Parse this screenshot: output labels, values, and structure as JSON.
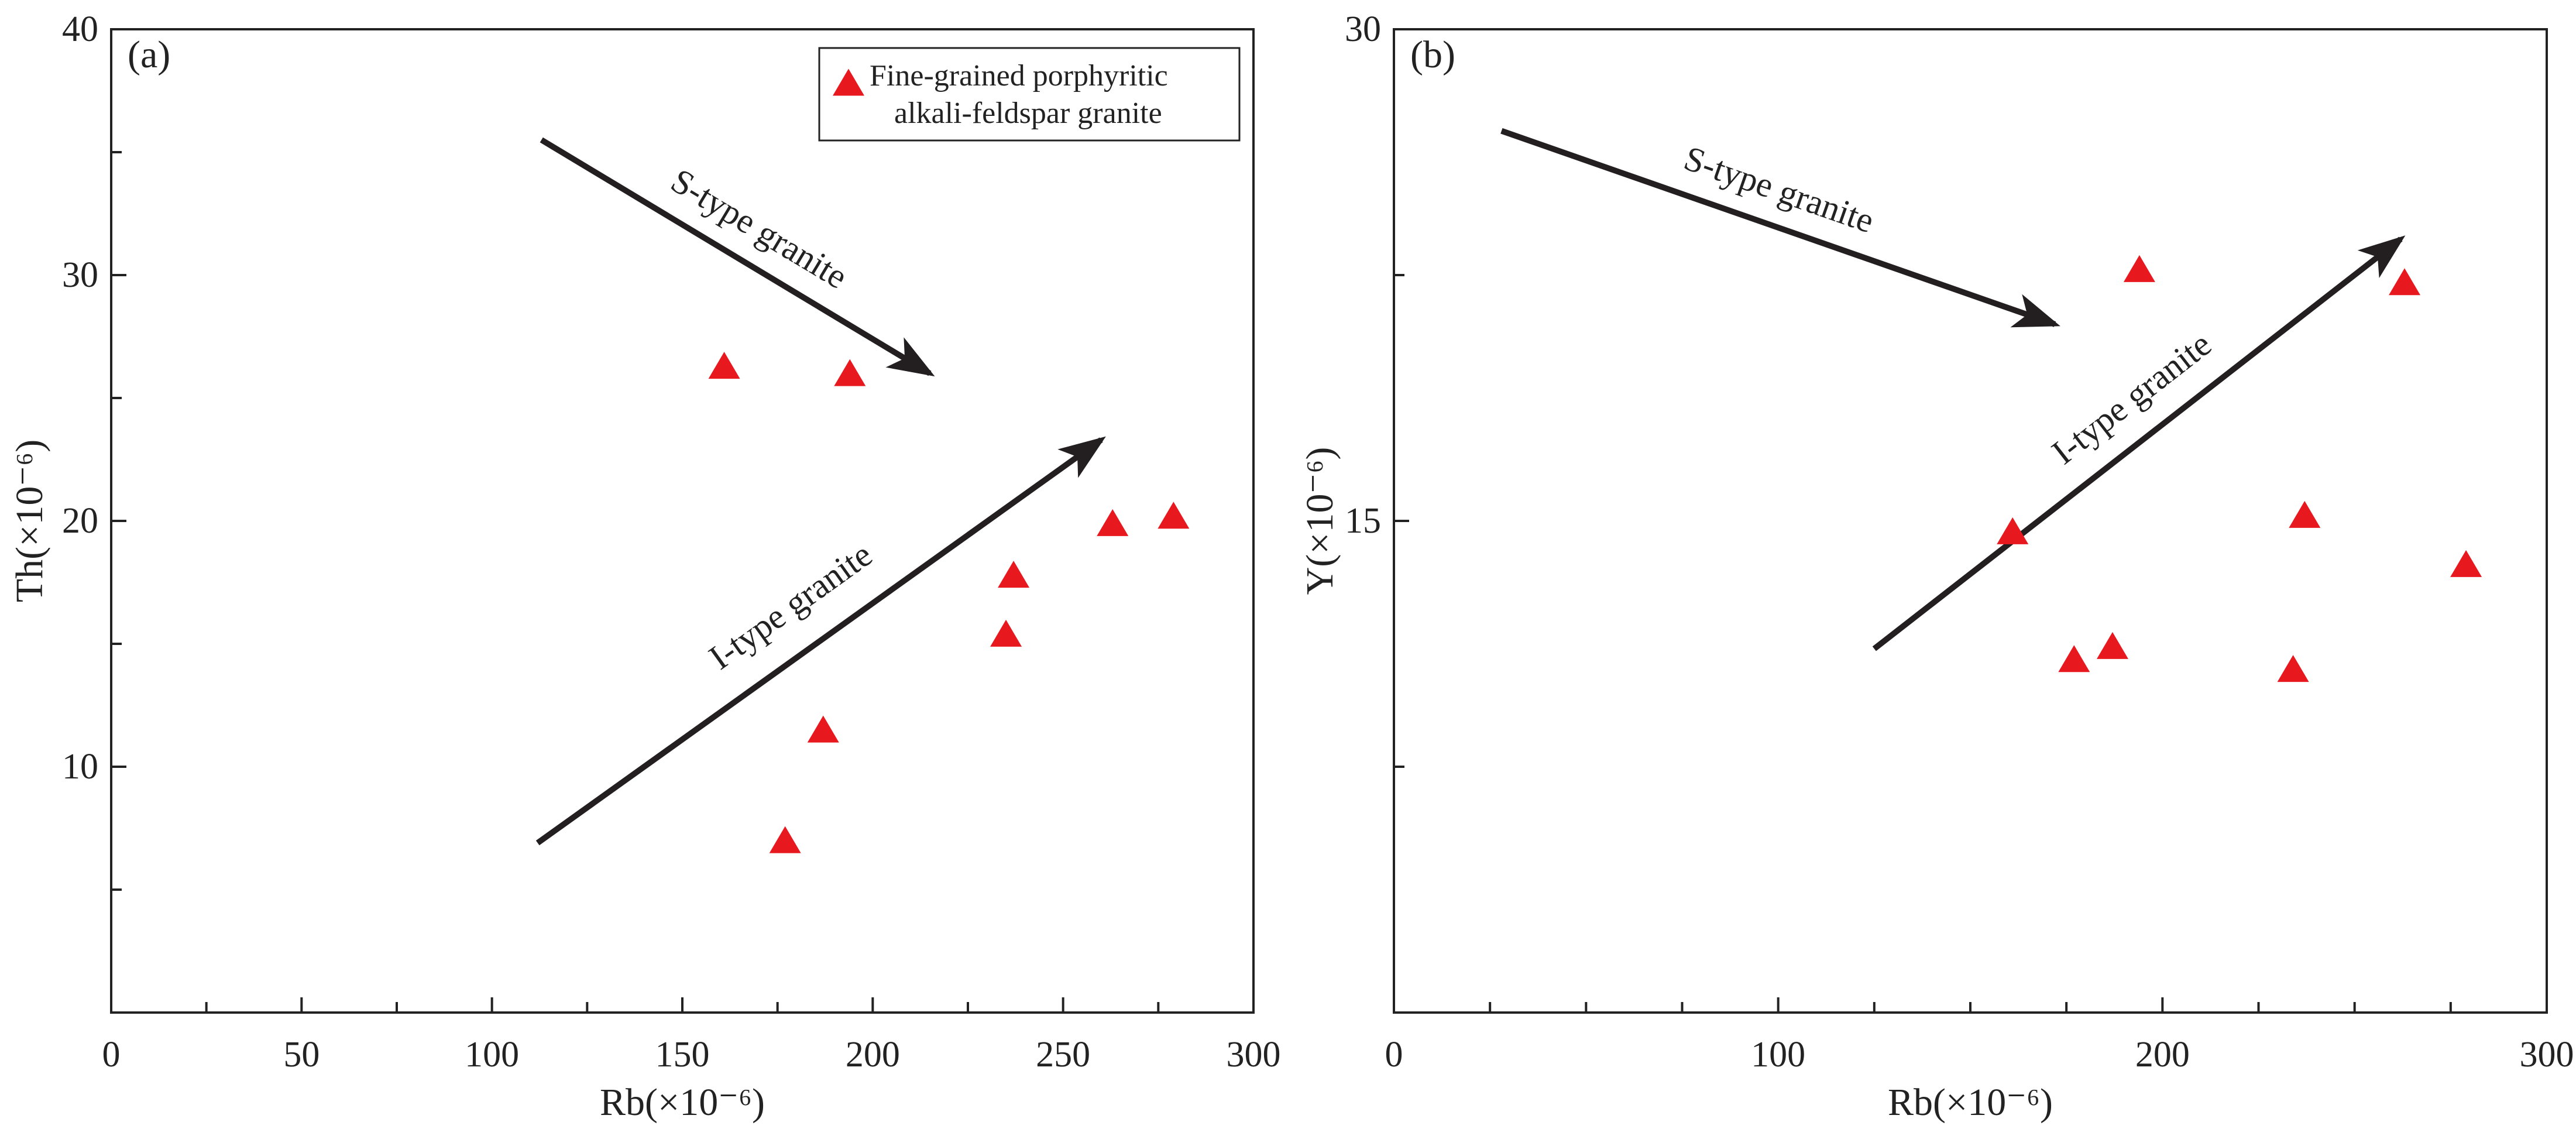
{
  "chart_data": [
    {
      "type": "scatter",
      "panel_label": "(a)",
      "xlabel": "Rb(×10⁻⁶)",
      "ylabel": "Th(×10⁻⁶)",
      "xlim": [
        0,
        300
      ],
      "ylim": [
        0,
        40
      ],
      "xticks": [
        0,
        50,
        100,
        150,
        200,
        250,
        300
      ],
      "xminor": [
        25,
        75,
        125,
        175,
        225,
        275
      ],
      "yticks_labeled": [
        10,
        20,
        30,
        40
      ],
      "yticks_unlabeled": [
        5,
        15,
        25,
        35
      ],
      "series": [
        {
          "name": "Fine-grained porphyritic alkali-feldspar granite",
          "marker": "triangle",
          "color": "#e8181f",
          "points": [
            [
              161,
              26.2
            ],
            [
              194,
              25.9
            ],
            [
              177,
              6.9
            ],
            [
              187,
              11.4
            ],
            [
              235,
              15.3
            ],
            [
              237,
              17.7
            ],
            [
              263,
              19.8
            ],
            [
              279,
              20.1
            ]
          ]
        }
      ],
      "legend": {
        "position": "top-right",
        "lines": [
          "Fine-grained porphyritic",
          "alkali-feldspar granite"
        ]
      },
      "arrows": [
        {
          "label": "S-type granite",
          "from": [
            113,
            35.5
          ],
          "to": [
            215,
            26.0
          ]
        },
        {
          "label": "I-type  granite",
          "from": [
            112,
            6.9
          ],
          "to": [
            260,
            23.3
          ]
        }
      ]
    },
    {
      "type": "scatter",
      "panel_label": "(b)",
      "xlabel": "Rb(×10⁻⁶)",
      "ylabel": "Y(×10⁻⁶)",
      "xlim": [
        0,
        300
      ],
      "ylim": [
        0,
        30
      ],
      "xticks": [
        0,
        100,
        200,
        300
      ],
      "xminor": [
        25,
        50,
        75,
        125,
        150,
        175,
        225,
        250,
        275
      ],
      "yticks_labeled": [
        15,
        30
      ],
      "yticks_unlabeled": [
        7.5,
        22.5
      ],
      "series": [
        {
          "name": "Fine-grained porphyritic alkali-feldspar granite",
          "marker": "triangle",
          "color": "#e8181f",
          "points": [
            [
              194,
              22.6
            ],
            [
              263,
              22.2
            ],
            [
              161,
              14.6
            ],
            [
              237,
              15.1
            ],
            [
              279,
              13.6
            ],
            [
              187,
              11.1
            ],
            [
              177,
              10.7
            ],
            [
              234,
              10.4
            ]
          ]
        }
      ],
      "arrows": [
        {
          "label": "S-type granite",
          "from": [
            28,
            26.9
          ],
          "to": [
            172,
            21.0
          ]
        },
        {
          "label": "I-type  granite",
          "from": [
            125,
            11.1
          ],
          "to": [
            262,
            23.6
          ]
        }
      ]
    }
  ]
}
